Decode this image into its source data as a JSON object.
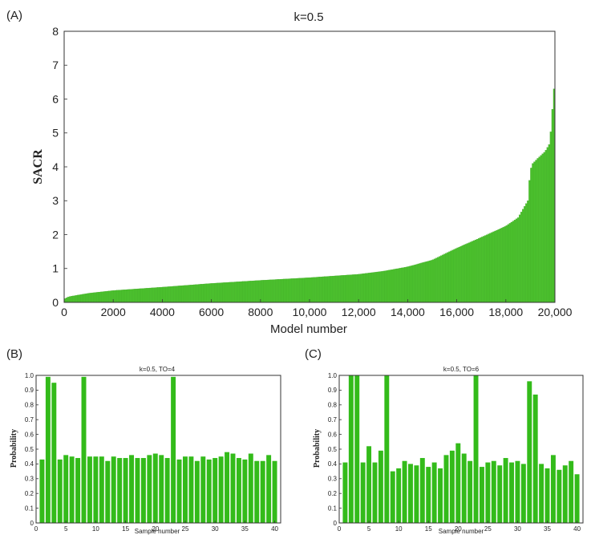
{
  "panels": {
    "a": {
      "label": "(A)"
    },
    "b": {
      "label": "(B)"
    },
    "c": {
      "label": "(C)"
    }
  },
  "chart_data": [
    {
      "id": "A",
      "type": "bar",
      "title": "k=0.5",
      "xlabel": "Model number",
      "ylabel": "SACR",
      "xlim": [
        0,
        20000
      ],
      "ylim": [
        0,
        8
      ],
      "xticks": [
        0,
        2000,
        4000,
        6000,
        8000,
        10000,
        12000,
        14000,
        16000,
        18000,
        20000
      ],
      "xtick_labels": [
        "0",
        "2000",
        "4000",
        "6000",
        "8000",
        "10,000",
        "12,000",
        "14,000",
        "16,000",
        "18,000",
        "20,000"
      ],
      "yticks": [
        0,
        1,
        2,
        3,
        4,
        5,
        6,
        7,
        8
      ],
      "grid": false,
      "color": "#4cc12e",
      "x": [
        0,
        200,
        1000,
        2000,
        4000,
        6000,
        8000,
        10000,
        12000,
        13000,
        14000,
        15000,
        16000,
        17000,
        18000,
        18500,
        18900,
        19000,
        19100,
        19300,
        19600,
        19800,
        19900,
        20000
      ],
      "values": [
        0.1,
        0.17,
        0.27,
        0.35,
        0.45,
        0.56,
        0.65,
        0.73,
        0.83,
        0.92,
        1.05,
        1.25,
        1.6,
        1.92,
        2.25,
        2.5,
        3.0,
        3.9,
        4.1,
        4.25,
        4.45,
        4.7,
        5.7,
        6.6
      ]
    },
    {
      "id": "B",
      "type": "bar",
      "title": "k=0.5, TO=4",
      "xlabel": "Sample number",
      "ylabel": "Probability",
      "xlim": [
        0,
        41
      ],
      "ylim": [
        0,
        1.0
      ],
      "xticks": [
        0,
        5,
        10,
        15,
        20,
        25,
        30,
        35,
        40
      ],
      "yticks": [
        0,
        0.1,
        0.2,
        0.3,
        0.4,
        0.5,
        0.6,
        0.7,
        0.8,
        0.9,
        1.0
      ],
      "ytick_labels": [
        "0",
        "0.1",
        "0.2",
        "0.3",
        "0.4",
        "0.5",
        "0.6",
        "0.7",
        "0.8",
        "0.9",
        "1.0"
      ],
      "grid": false,
      "color": "#33bb1a",
      "categories": [
        1,
        2,
        3,
        4,
        5,
        6,
        7,
        8,
        9,
        10,
        11,
        12,
        13,
        14,
        15,
        16,
        17,
        18,
        19,
        20,
        21,
        22,
        23,
        24,
        25,
        26,
        27,
        28,
        29,
        30,
        31,
        32,
        33,
        34,
        35,
        36,
        37,
        38,
        39,
        40
      ],
      "values": [
        0.43,
        0.99,
        0.95,
        0.43,
        0.46,
        0.45,
        0.44,
        0.99,
        0.45,
        0.45,
        0.45,
        0.42,
        0.45,
        0.44,
        0.44,
        0.46,
        0.44,
        0.44,
        0.46,
        0.47,
        0.46,
        0.44,
        0.99,
        0.43,
        0.45,
        0.45,
        0.42,
        0.45,
        0.43,
        0.44,
        0.45,
        0.48,
        0.47,
        0.44,
        0.43,
        0.47,
        0.42,
        0.42,
        0.46,
        0.42
      ]
    },
    {
      "id": "C",
      "type": "bar",
      "title": "k=0.5, TO=6",
      "xlabel": "Sample number",
      "ylabel": "Probability",
      "xlim": [
        0,
        41
      ],
      "ylim": [
        0,
        1.0
      ],
      "xticks": [
        0,
        5,
        10,
        15,
        20,
        25,
        30,
        35,
        40
      ],
      "yticks": [
        0,
        0.1,
        0.2,
        0.3,
        0.4,
        0.5,
        0.6,
        0.7,
        0.8,
        0.9,
        1.0
      ],
      "ytick_labels": [
        "0",
        "0.1",
        "0.2",
        "0.3",
        "0.4",
        "0.5",
        "0.6",
        "0.7",
        "0.8",
        "0.9",
        "1.0"
      ],
      "grid": false,
      "color": "#33bb1a",
      "categories": [
        1,
        2,
        3,
        4,
        5,
        6,
        7,
        8,
        9,
        10,
        11,
        12,
        13,
        14,
        15,
        16,
        17,
        18,
        19,
        20,
        21,
        22,
        23,
        24,
        25,
        26,
        27,
        28,
        29,
        30,
        31,
        32,
        33,
        34,
        35,
        36,
        37,
        38,
        39,
        40
      ],
      "values": [
        0.41,
        1.0,
        1.0,
        0.41,
        0.52,
        0.41,
        0.49,
        1.0,
        0.35,
        0.37,
        0.42,
        0.4,
        0.39,
        0.44,
        0.38,
        0.41,
        0.37,
        0.46,
        0.49,
        0.54,
        0.47,
        0.42,
        1.0,
        0.38,
        0.41,
        0.42,
        0.39,
        0.44,
        0.41,
        0.42,
        0.4,
        0.96,
        0.87,
        0.4,
        0.37,
        0.46,
        0.36,
        0.39,
        0.42,
        0.33
      ]
    }
  ]
}
